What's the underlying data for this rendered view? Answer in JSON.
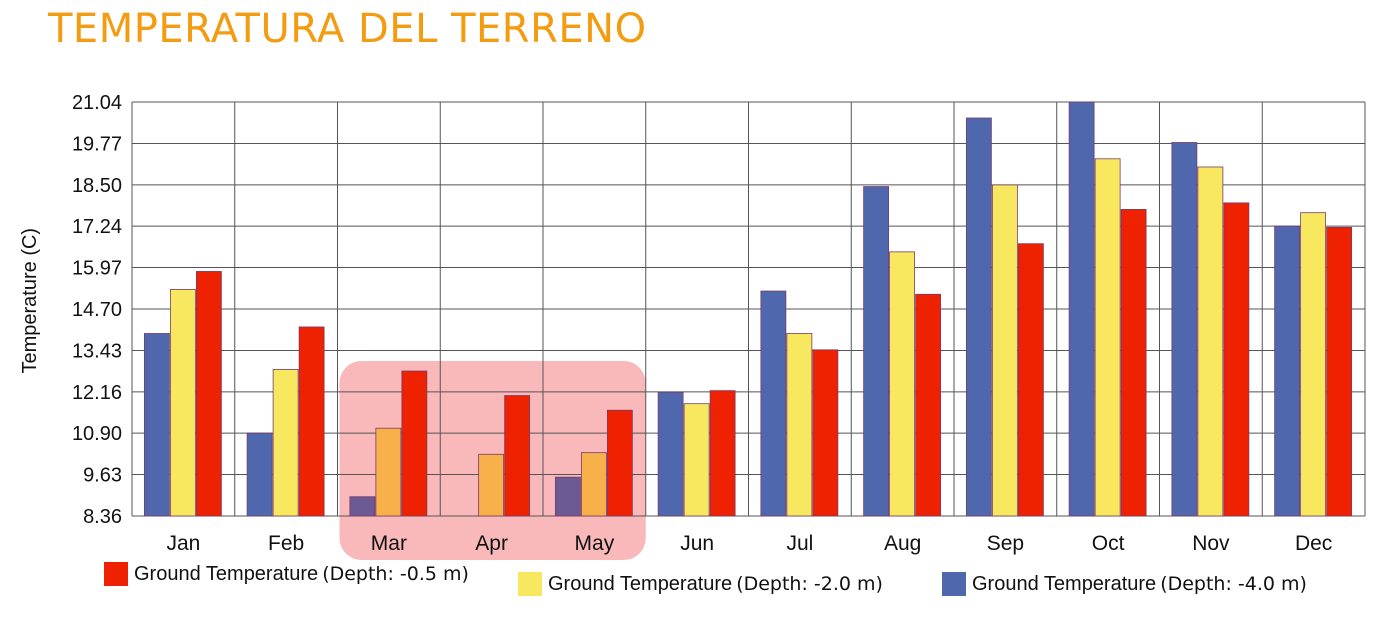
{
  "page_title": "TEMPERATURA DEL TERRENO",
  "colors": {
    "title": "#f39c12",
    "depth_0_5": "#ee2200",
    "depth_2_0": "#f8e860",
    "depth_4_0": "#4f68ad",
    "highlight": "#f9b9bb",
    "highlight_depth_2_0": "#f7b04a",
    "highlight_depth_4_0": "#6b5a93",
    "grid": "#555555"
  },
  "chart_data": {
    "type": "bar",
    "ylabel": "Temperature (C)",
    "xlabel": "",
    "ylim": [
      8.36,
      21.04
    ],
    "yticks": [
      "21.04",
      "19.77",
      "18.50",
      "17.24",
      "15.97",
      "14.70",
      "13.43",
      "12.16",
      "10.90",
      "9.63",
      "8.36"
    ],
    "categories": [
      "Jan",
      "Feb",
      "Mar",
      "Apr",
      "May",
      "Jun",
      "Jul",
      "Aug",
      "Sep",
      "Oct",
      "Nov",
      "Dec"
    ],
    "grid": true,
    "legend_position": "bottom",
    "highlighted_categories": [
      "Mar",
      "Apr",
      "May"
    ],
    "series": [
      {
        "name": "Ground Temperature",
        "depth": "(Depth: -4.0 m)",
        "color_key": "depth_4_0",
        "values": [
          13.95,
          10.9,
          8.95,
          null,
          9.55,
          12.15,
          15.25,
          18.45,
          20.55,
          21.04,
          19.8,
          17.24
        ]
      },
      {
        "name": "Ground Temperature",
        "depth": "(Depth: -2.0 m)",
        "color_key": "depth_2_0",
        "values": [
          15.3,
          12.85,
          11.05,
          10.25,
          10.3,
          11.8,
          13.95,
          16.45,
          18.5,
          19.3,
          19.05,
          17.65
        ]
      },
      {
        "name": "Ground Temperature",
        "depth": "(Depth: -0.5 m)",
        "color_key": "depth_0_5",
        "values": [
          15.85,
          14.15,
          12.8,
          12.05,
          11.6,
          12.2,
          13.45,
          15.15,
          16.7,
          17.75,
          17.95,
          17.2
        ]
      }
    ]
  },
  "legend": [
    {
      "label": "Ground Temperature",
      "depth": "(Depth: -0.5 m)",
      "color_key": "depth_0_5"
    },
    {
      "label": "Ground Temperature",
      "depth": "(Depth: -2.0 m)",
      "color_key": "depth_2_0"
    },
    {
      "label": "Ground Temperature",
      "depth": "(Depth: -4.0 m)",
      "color_key": "depth_4_0"
    }
  ]
}
